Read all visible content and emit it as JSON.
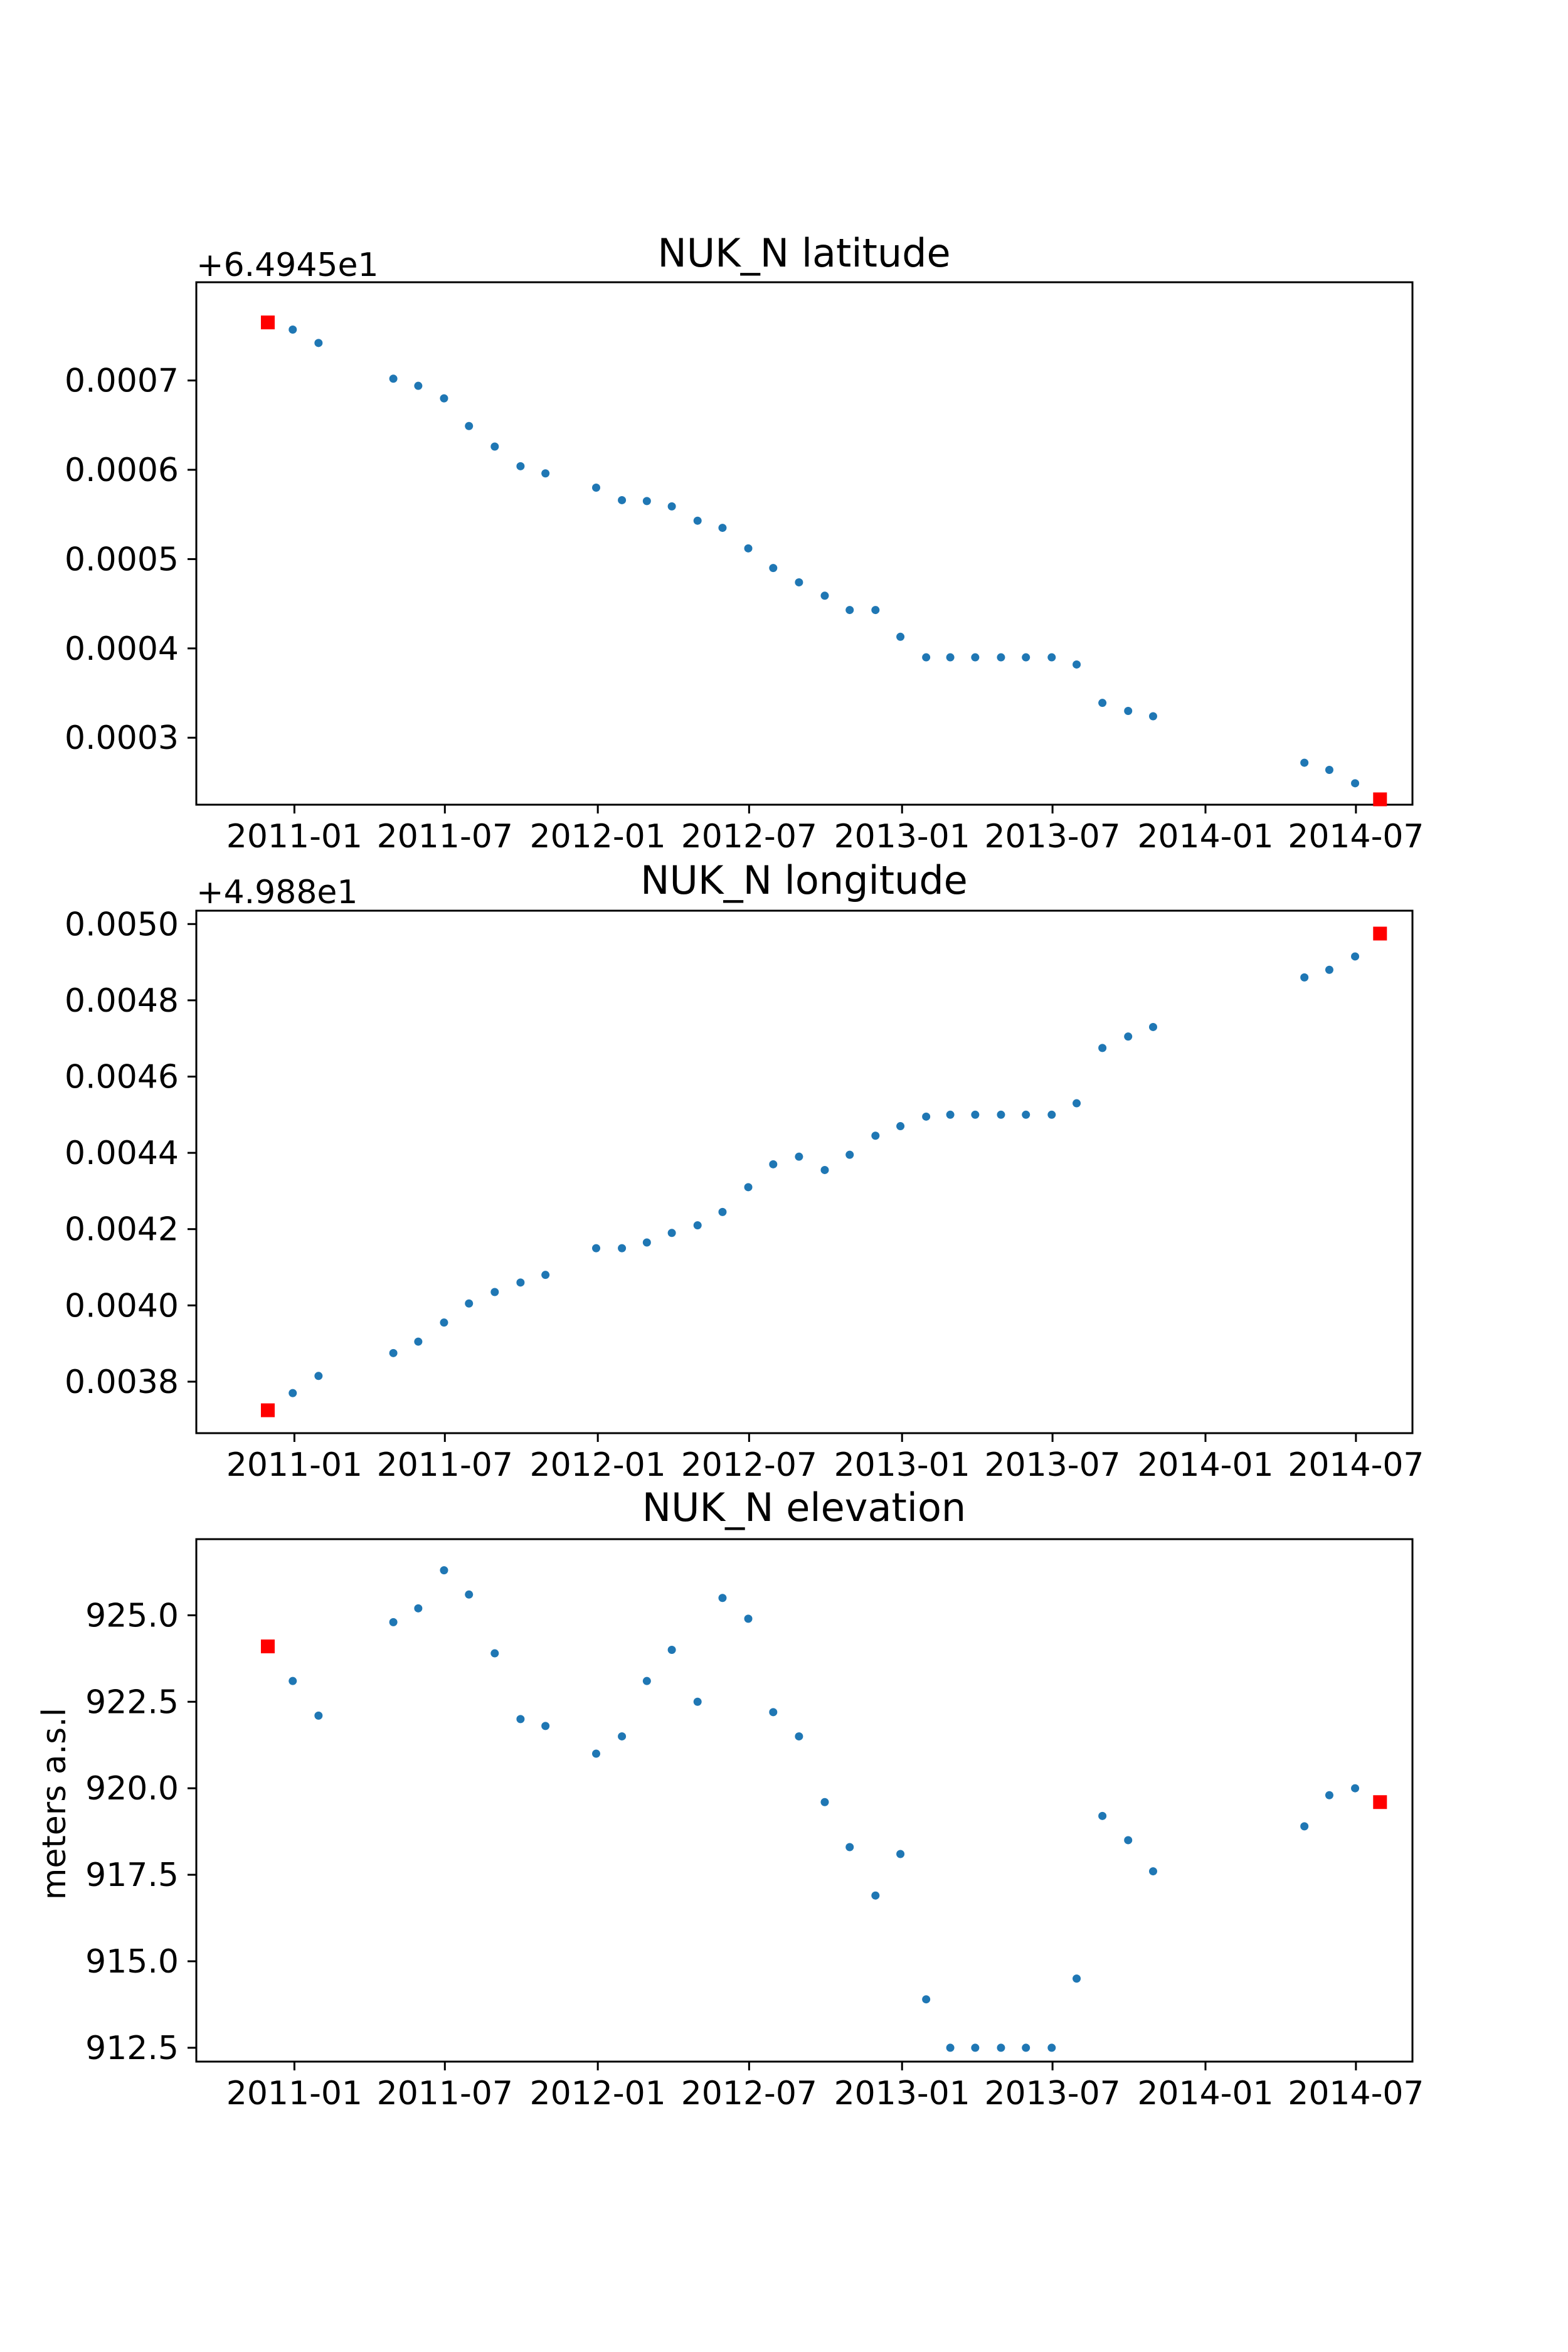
{
  "chart_data": [
    {
      "type": "scatter",
      "title": "NUK_N latitude",
      "ylabel": "",
      "offset_text": "+6.4945e1",
      "xlim": [
        "2010-09-05",
        "2014-09-07"
      ],
      "ylim": [
        0.000225,
        0.00081
      ],
      "x_ticks": [
        "2011-01",
        "2011-07",
        "2012-01",
        "2012-07",
        "2013-01",
        "2013-07",
        "2014-01",
        "2014-07"
      ],
      "y_ticks": [
        "0.0003",
        "0.0004",
        "0.0005",
        "0.0006",
        "0.0007"
      ],
      "y_tick_values": [
        0.0003,
        0.0004,
        0.0005,
        0.0006,
        0.0007
      ],
      "colors": {
        "points": "#1f77b4",
        "endpoints": "#ff0000"
      },
      "series": [
        {
          "marker": "dot",
          "x": [
            "2010-11-30",
            "2010-12-30",
            "2011-01-30",
            "2011-04-30",
            "2011-05-30",
            "2011-06-30",
            "2011-07-30",
            "2011-08-30",
            "2011-09-30",
            "2011-10-30",
            "2011-12-30",
            "2012-01-30",
            "2012-02-29",
            "2012-03-30",
            "2012-04-30",
            "2012-05-30",
            "2012-06-30",
            "2012-07-30",
            "2012-08-30",
            "2012-09-30",
            "2012-10-30",
            "2012-11-30",
            "2012-12-30",
            "2013-01-30",
            "2013-02-28",
            "2013-03-30",
            "2013-04-30",
            "2013-05-30",
            "2013-06-30",
            "2013-07-30",
            "2013-08-30",
            "2013-09-30",
            "2013-10-30",
            "2014-04-30",
            "2014-05-30",
            "2014-06-30",
            "2014-07-30"
          ],
          "y": [
            0.000765,
            0.000757,
            0.000742,
            0.000702,
            0.000694,
            0.00068,
            0.000649,
            0.000626,
            0.000604,
            0.000596,
            0.00058,
            0.000566,
            0.000565,
            0.000559,
            0.000543,
            0.000535,
            0.000512,
            0.00049,
            0.000474,
            0.000459,
            0.000443,
            0.000443,
            0.000413,
            0.00039,
            0.00039,
            0.00039,
            0.00039,
            0.00039,
            0.00039,
            0.000382,
            0.000339,
            0.00033,
            0.000324,
            0.000272,
            0.000264,
            0.000249,
            0.000231
          ]
        },
        {
          "marker": "square",
          "x": [
            "2010-11-30",
            "2014-07-30"
          ],
          "y": [
            0.000765,
            0.000231
          ]
        }
      ]
    },
    {
      "type": "scatter",
      "title": "NUK_N longitude",
      "ylabel": "",
      "offset_text": "+4.988e1",
      "xlim": [
        "2010-09-05",
        "2014-09-07"
      ],
      "ylim": [
        0.003665,
        0.005035
      ],
      "x_ticks": [
        "2011-01",
        "2011-07",
        "2012-01",
        "2012-07",
        "2013-01",
        "2013-07",
        "2014-01",
        "2014-07"
      ],
      "y_ticks": [
        "0.0038",
        "0.0040",
        "0.0042",
        "0.0044",
        "0.0046",
        "0.0048",
        "0.0050"
      ],
      "y_tick_values": [
        0.0038,
        0.004,
        0.0042,
        0.0044,
        0.0046,
        0.0048,
        0.005
      ],
      "colors": {
        "points": "#1f77b4",
        "endpoints": "#ff0000"
      },
      "series": [
        {
          "marker": "dot",
          "x": [
            "2010-11-30",
            "2010-12-30",
            "2011-01-30",
            "2011-04-30",
            "2011-05-30",
            "2011-06-30",
            "2011-07-30",
            "2011-08-30",
            "2011-09-30",
            "2011-10-30",
            "2011-12-30",
            "2012-01-30",
            "2012-02-29",
            "2012-03-30",
            "2012-04-30",
            "2012-05-30",
            "2012-06-30",
            "2012-07-30",
            "2012-08-30",
            "2012-09-30",
            "2012-10-30",
            "2012-11-30",
            "2012-12-30",
            "2013-01-30",
            "2013-02-28",
            "2013-03-30",
            "2013-04-30",
            "2013-05-30",
            "2013-06-30",
            "2013-07-30",
            "2013-08-30",
            "2013-09-30",
            "2013-10-30",
            "2014-04-30",
            "2014-05-30",
            "2014-06-30",
            "2014-07-30"
          ],
          "y": [
            0.003725,
            0.00377,
            0.003815,
            0.003875,
            0.003905,
            0.003955,
            0.004005,
            0.004035,
            0.00406,
            0.00408,
            0.00415,
            0.00415,
            0.004165,
            0.00419,
            0.00421,
            0.004245,
            0.00431,
            0.00437,
            0.00439,
            0.004355,
            0.004395,
            0.004445,
            0.00447,
            0.004495,
            0.0045,
            0.0045,
            0.0045,
            0.0045,
            0.0045,
            0.00453,
            0.004675,
            0.004705,
            0.00473,
            0.00486,
            0.00488,
            0.004915,
            0.004975
          ]
        },
        {
          "marker": "square",
          "x": [
            "2010-11-30",
            "2014-07-30"
          ],
          "y": [
            0.003725,
            0.004975
          ]
        }
      ]
    },
    {
      "type": "scatter",
      "title": "NUK_N elevation",
      "ylabel": "meters a.s.l",
      "offset_text": "",
      "xlim": [
        "2010-09-05",
        "2014-09-07"
      ],
      "ylim": [
        912.1,
        927.2
      ],
      "x_ticks": [
        "2011-01",
        "2011-07",
        "2012-01",
        "2012-07",
        "2013-01",
        "2013-07",
        "2014-01",
        "2014-07"
      ],
      "y_ticks": [
        "912.5",
        "915.0",
        "917.5",
        "920.0",
        "922.5",
        "925.0"
      ],
      "y_tick_values": [
        912.5,
        915.0,
        917.5,
        920.0,
        922.5,
        925.0
      ],
      "colors": {
        "points": "#1f77b4",
        "endpoints": "#ff0000"
      },
      "series": [
        {
          "marker": "dot",
          "x": [
            "2010-11-30",
            "2010-12-30",
            "2011-01-30",
            "2011-04-30",
            "2011-05-30",
            "2011-06-30",
            "2011-07-30",
            "2011-08-30",
            "2011-09-30",
            "2011-10-30",
            "2011-12-30",
            "2012-01-30",
            "2012-02-29",
            "2012-03-30",
            "2012-04-30",
            "2012-05-30",
            "2012-06-30",
            "2012-07-30",
            "2012-08-30",
            "2012-09-30",
            "2012-10-30",
            "2012-11-30",
            "2012-12-30",
            "2013-01-30",
            "2013-02-28",
            "2013-03-30",
            "2013-04-30",
            "2013-05-30",
            "2013-06-30",
            "2013-07-30",
            "2013-08-30",
            "2013-09-30",
            "2013-10-30",
            "2014-04-30",
            "2014-05-30",
            "2014-06-30",
            "2014-07-30"
          ],
          "y": [
            924.1,
            923.1,
            922.1,
            924.8,
            925.2,
            926.3,
            925.6,
            923.9,
            922.0,
            921.8,
            921.0,
            921.5,
            923.1,
            924.0,
            922.5,
            925.5,
            924.9,
            922.2,
            921.5,
            919.6,
            918.3,
            916.9,
            918.1,
            913.9,
            912.5,
            912.5,
            912.5,
            912.5,
            912.5,
            914.5,
            919.2,
            918.5,
            917.6,
            918.9,
            919.8,
            920.0,
            919.6
          ]
        },
        {
          "marker": "square",
          "x": [
            "2010-11-30",
            "2014-07-30"
          ],
          "y": [
            924.1,
            919.6
          ]
        }
      ]
    }
  ]
}
